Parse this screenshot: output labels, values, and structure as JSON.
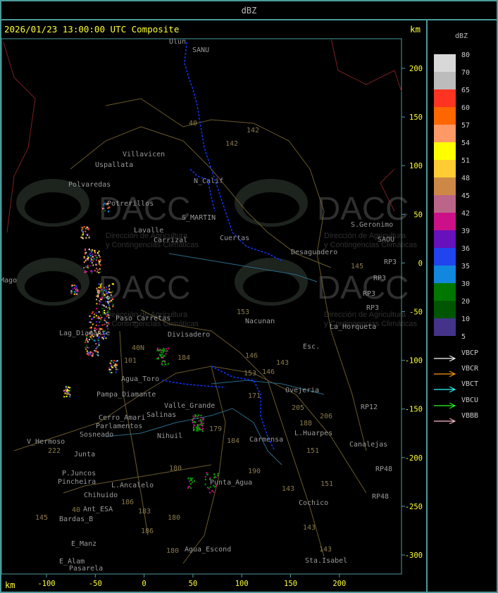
{
  "header": {
    "title": "dBZ"
  },
  "map": {
    "title": "2026/01/23 13:00:00 UTC Composite",
    "unit_top": "km",
    "unit_bottom": "km",
    "y_ticks": [
      "200",
      "150",
      "100",
      "50",
      "0",
      "-50",
      "-100",
      "-150",
      "-200",
      "-250",
      "-300"
    ],
    "x_ticks": [
      "-100",
      "-50",
      "0",
      "50",
      "100",
      "150",
      "200"
    ],
    "watermark": "DACC",
    "watermark_sub": [
      "Dirección de Agricultura",
      "y Contingencias Climáticas"
    ],
    "places": [
      "Ulun",
      "SANU",
      "Villavicen",
      "Uspallata",
      "Polvaredas",
      "Potrerillos",
      "N_Calif",
      "S_MARTIN",
      "Lavalle",
      "Carrizal",
      "Cuertas",
      "Desaguadero",
      "S.Geronimo",
      "SAOU",
      "RP3",
      "RP3",
      "RP3",
      "RP3",
      "La_Horqueta",
      "Nacunan",
      "Divisadero",
      "Lag_Diamante",
      "Esc.",
      "Paso_Carretas",
      "Agua_Toro",
      "Pampa_Diamante",
      "Valle_Grande",
      "Salinas",
      "Cerro_Amari",
      "Parlamentos",
      "Sosneado",
      "Nihuil",
      "V_Hermoso",
      "Junta",
      "Ovejeria",
      "RP12",
      "L.Huarpes",
      "Carmensa",
      "Canalejas",
      "RP48",
      "RP48",
      "P.Juncos",
      "Pincheira",
      "L.Ancalelo",
      "Chihuido",
      "Ant_ESA",
      "Bardas_B",
      "Punta_Agua",
      "Cochico",
      "E_Manz",
      "E_Alam",
      "Pasarela",
      "Agua_Escond",
      "Sta.Isabel",
      "Mago"
    ],
    "roads": [
      "40",
      "142",
      "142",
      "153",
      "146",
      "143",
      "184",
      "179",
      "180",
      "190",
      "151",
      "188",
      "145",
      "186",
      "183",
      "206",
      "205",
      "171",
      "101",
      "40N",
      "143",
      "153",
      "146",
      "184",
      "180",
      "186",
      "180",
      "143",
      "143",
      "151",
      "222",
      "145",
      "40"
    ]
  },
  "legend": {
    "title": "dBZ",
    "levels": [
      {
        "label": "80",
        "color": "#d8d8d8"
      },
      {
        "label": "70",
        "color": "#bcbcbc"
      },
      {
        "label": "65",
        "color": "#ff3322"
      },
      {
        "label": "60",
        "color": "#ff6600"
      },
      {
        "label": "57",
        "color": "#ff9966"
      },
      {
        "label": "54",
        "color": "#ffff00"
      },
      {
        "label": "51",
        "color": "#ffcc33"
      },
      {
        "label": "48",
        "color": "#cc8844"
      },
      {
        "label": "45",
        "color": "#bb6688"
      },
      {
        "label": "42",
        "color": "#cc1188"
      },
      {
        "label": "39",
        "color": "#6611bb"
      },
      {
        "label": "36",
        "color": "#2244ee"
      },
      {
        "label": "35",
        "color": "#1188dd"
      },
      {
        "label": "30",
        "color": "#007700"
      },
      {
        "label": "20",
        "color": "#005500"
      },
      {
        "label": "10",
        "color": "#443388"
      },
      {
        "label": "5",
        "color": ""
      }
    ],
    "radars": [
      {
        "label": "VBCP",
        "color": "#ffffff"
      },
      {
        "label": "VBCR",
        "color": "#ff9900"
      },
      {
        "label": "VBCT",
        "color": "#33ffff"
      },
      {
        "label": "VBCU",
        "color": "#22ff22"
      },
      {
        "label": "VBBB",
        "color": "#ffbbcc"
      }
    ]
  }
}
